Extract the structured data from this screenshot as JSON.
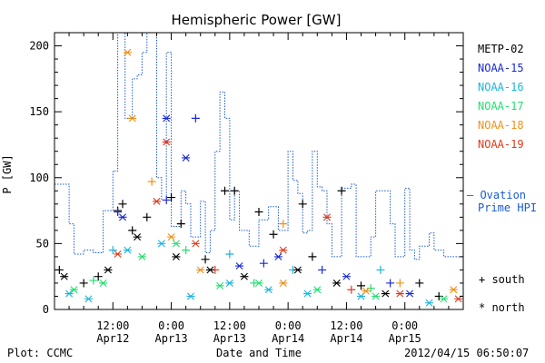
{
  "footer": {
    "plot_credit": "Plot: CCMC",
    "timestamp": "2012/04/15 06:50:07"
  },
  "chart_data": {
    "type": "scatter",
    "title": "Hemispheric Power [GW]",
    "xlabel": "Date and Time",
    "ylabel": "P [GW]",
    "ylim": [
      0,
      210
    ],
    "xlim_hours_from_first_tick_minus_12": [
      -3,
      81
    ],
    "yticks": [
      0,
      50,
      100,
      150,
      200
    ],
    "xticks": [
      {
        "time": "12:00",
        "date": "Apr12"
      },
      {
        "time": "0:00",
        "date": "Apr13"
      },
      {
        "time": "12:00",
        "date": "Apr13"
      },
      {
        "time": "0:00",
        "date": "Apr14"
      },
      {
        "time": "12:00",
        "date": "Apr14"
      },
      {
        "time": "0:00",
        "date": "Apr15"
      }
    ],
    "legend": {
      "placement": "right",
      "satellites": [
        {
          "name": "METP-02",
          "color": "#000000"
        },
        {
          "name": "NOAA-15",
          "color": "#1a2ad0"
        },
        {
          "name": "NOAA-16",
          "color": "#1ab4e0"
        },
        {
          "name": "NOAA-17",
          "color": "#22e070"
        },
        {
          "name": "NOAA-18",
          "color": "#f0901a"
        },
        {
          "name": "NOAA-19",
          "color": "#e03a1a"
        }
      ],
      "ovation_label_1": "— Ovation",
      "ovation_label_2": "Prime HPI",
      "ovation_color": "#1a5ad0",
      "marker_south": "+ south",
      "marker_north": "* north"
    },
    "ovation_step": [
      [
        -3,
        95
      ],
      [
        0,
        65
      ],
      [
        1,
        42
      ],
      [
        3,
        45
      ],
      [
        5,
        43
      ],
      [
        7,
        75
      ],
      [
        9,
        105
      ],
      [
        10,
        215
      ],
      [
        11,
        215
      ],
      [
        11.5,
        145
      ],
      [
        13,
        175
      ],
      [
        14,
        178
      ],
      [
        15,
        195
      ],
      [
        16,
        215
      ],
      [
        17,
        210
      ],
      [
        18,
        100
      ],
      [
        19,
        83
      ],
      [
        20,
        195
      ],
      [
        21,
        63
      ],
      [
        23,
        90
      ],
      [
        24,
        80
      ],
      [
        25,
        55
      ],
      [
        27,
        82
      ],
      [
        28,
        43
      ],
      [
        29,
        60
      ],
      [
        30,
        120
      ],
      [
        31,
        165
      ],
      [
        32,
        145
      ],
      [
        33,
        68
      ],
      [
        34,
        90
      ],
      [
        35,
        60
      ],
      [
        37,
        48
      ],
      [
        39,
        68
      ],
      [
        41,
        78
      ],
      [
        43,
        60
      ],
      [
        45,
        120
      ],
      [
        46,
        98
      ],
      [
        47,
        88
      ],
      [
        48,
        58
      ],
      [
        49,
        60
      ],
      [
        50,
        120
      ],
      [
        51,
        93
      ],
      [
        52,
        90
      ],
      [
        53,
        65
      ],
      [
        54,
        40
      ],
      [
        56,
        92
      ],
      [
        58,
        95
      ],
      [
        59,
        40
      ],
      [
        62,
        55
      ],
      [
        63,
        90
      ],
      [
        65,
        90
      ],
      [
        66,
        65
      ],
      [
        67,
        40
      ],
      [
        69,
        92
      ],
      [
        70,
        45
      ],
      [
        71,
        38
      ],
      [
        72,
        48
      ],
      [
        74,
        58
      ],
      [
        75,
        45
      ],
      [
        77,
        40
      ],
      [
        81,
        40
      ]
    ],
    "south_points": [
      {
        "sat": "METP-02",
        "x": -2,
        "y": 30
      },
      {
        "sat": "METP-02",
        "x": 3,
        "y": 20
      },
      {
        "sat": "METP-02",
        "x": 6,
        "y": 25
      },
      {
        "sat": "METP-02",
        "x": 10,
        "y": 75
      },
      {
        "sat": "METP-02",
        "x": 11,
        "y": 80
      },
      {
        "sat": "METP-02",
        "x": 13,
        "y": 60
      },
      {
        "sat": "METP-02",
        "x": 16,
        "y": 70
      },
      {
        "sat": "METP-02",
        "x": 21,
        "y": 85
      },
      {
        "sat": "METP-02",
        "x": 23,
        "y": 65
      },
      {
        "sat": "METP-02",
        "x": 28,
        "y": 38
      },
      {
        "sat": "METP-02",
        "x": 32,
        "y": 90
      },
      {
        "sat": "METP-02",
        "x": 34,
        "y": 90
      },
      {
        "sat": "METP-02",
        "x": 39,
        "y": 74
      },
      {
        "sat": "METP-02",
        "x": 42,
        "y": 57
      },
      {
        "sat": "METP-02",
        "x": 48,
        "y": 80
      },
      {
        "sat": "METP-02",
        "x": 50,
        "y": 40
      },
      {
        "sat": "METP-02",
        "x": 56,
        "y": 90
      },
      {
        "sat": "METP-02",
        "x": 60,
        "y": 18
      },
      {
        "sat": "METP-02",
        "x": 72,
        "y": 20
      },
      {
        "sat": "METP-02",
        "x": 76,
        "y": 10
      },
      {
        "sat": "NOAA-15",
        "x": 10,
        "y": 74
      },
      {
        "sat": "NOAA-15",
        "x": 20,
        "y": 83
      },
      {
        "sat": "NOAA-15",
        "x": 26,
        "y": 145
      },
      {
        "sat": "NOAA-15",
        "x": 40,
        "y": 35
      },
      {
        "sat": "NOAA-15",
        "x": 52,
        "y": 30
      },
      {
        "sat": "NOAA-15",
        "x": 66,
        "y": 20
      },
      {
        "sat": "NOAA-16",
        "x": 9,
        "y": 45
      },
      {
        "sat": "NOAA-16",
        "x": 33,
        "y": 42
      },
      {
        "sat": "NOAA-16",
        "x": 46,
        "y": 30
      },
      {
        "sat": "NOAA-16",
        "x": 64,
        "y": 30
      },
      {
        "sat": "NOAA-17",
        "x": 5,
        "y": 22
      },
      {
        "sat": "NOAA-17",
        "x": 24,
        "y": 45
      },
      {
        "sat": "NOAA-17",
        "x": 38,
        "y": 20
      },
      {
        "sat": "NOAA-17",
        "x": 62,
        "y": 16
      },
      {
        "sat": "NOAA-18",
        "x": 17,
        "y": 97
      },
      {
        "sat": "NOAA-18",
        "x": 44,
        "y": 65
      },
      {
        "sat": "NOAA-18",
        "x": 68,
        "y": 20
      },
      {
        "sat": "NOAA-19",
        "x": 30,
        "y": 30
      },
      {
        "sat": "NOAA-19",
        "x": 58,
        "y": 15
      }
    ],
    "north_points": [
      {
        "sat": "METP-02",
        "x": -1,
        "y": 25
      },
      {
        "sat": "METP-02",
        "x": 8,
        "y": 30
      },
      {
        "sat": "METP-02",
        "x": 14,
        "y": 55
      },
      {
        "sat": "METP-02",
        "x": 22,
        "y": 40
      },
      {
        "sat": "METP-02",
        "x": 29,
        "y": 30
      },
      {
        "sat": "METP-02",
        "x": 36,
        "y": 25
      },
      {
        "sat": "METP-02",
        "x": 47,
        "y": 30
      },
      {
        "sat": "METP-02",
        "x": 55,
        "y": 20
      },
      {
        "sat": "METP-02",
        "x": 65,
        "y": 12
      },
      {
        "sat": "NOAA-15",
        "x": 11,
        "y": 70
      },
      {
        "sat": "NOAA-15",
        "x": 20,
        "y": 145
      },
      {
        "sat": "NOAA-15",
        "x": 24,
        "y": 115
      },
      {
        "sat": "NOAA-15",
        "x": 35,
        "y": 33
      },
      {
        "sat": "NOAA-15",
        "x": 43,
        "y": 40
      },
      {
        "sat": "NOAA-15",
        "x": 57,
        "y": 25
      },
      {
        "sat": "NOAA-15",
        "x": 70,
        "y": 12
      },
      {
        "sat": "NOAA-16",
        "x": 0,
        "y": 12
      },
      {
        "sat": "NOAA-16",
        "x": 4,
        "y": 8
      },
      {
        "sat": "NOAA-16",
        "x": 12,
        "y": 45
      },
      {
        "sat": "NOAA-16",
        "x": 19,
        "y": 50
      },
      {
        "sat": "NOAA-16",
        "x": 25,
        "y": 10
      },
      {
        "sat": "NOAA-16",
        "x": 33,
        "y": 20
      },
      {
        "sat": "NOAA-16",
        "x": 41,
        "y": 15
      },
      {
        "sat": "NOAA-16",
        "x": 49,
        "y": 12
      },
      {
        "sat": "NOAA-16",
        "x": 60,
        "y": 10
      },
      {
        "sat": "NOAA-16",
        "x": 74,
        "y": 5
      },
      {
        "sat": "NOAA-17",
        "x": 1,
        "y": 15
      },
      {
        "sat": "NOAA-17",
        "x": 7,
        "y": 20
      },
      {
        "sat": "NOAA-17",
        "x": 15,
        "y": 40
      },
      {
        "sat": "NOAA-17",
        "x": 22,
        "y": 50
      },
      {
        "sat": "NOAA-17",
        "x": 31,
        "y": 18
      },
      {
        "sat": "NOAA-17",
        "x": 39,
        "y": 20
      },
      {
        "sat": "NOAA-17",
        "x": 51,
        "y": 15
      },
      {
        "sat": "NOAA-17",
        "x": 63,
        "y": 10
      },
      {
        "sat": "NOAA-17",
        "x": 77,
        "y": 8
      },
      {
        "sat": "NOAA-18",
        "x": 12,
        "y": 195
      },
      {
        "sat": "NOAA-18",
        "x": 13,
        "y": 145
      },
      {
        "sat": "NOAA-18",
        "x": 21,
        "y": 55
      },
      {
        "sat": "NOAA-18",
        "x": 27,
        "y": 30
      },
      {
        "sat": "NOAA-18",
        "x": 44,
        "y": 20
      },
      {
        "sat": "NOAA-18",
        "x": 61,
        "y": 14
      },
      {
        "sat": "NOAA-18",
        "x": 79,
        "y": 15
      },
      {
        "sat": "NOAA-19",
        "x": 10,
        "y": 42
      },
      {
        "sat": "NOAA-19",
        "x": 18,
        "y": 82
      },
      {
        "sat": "NOAA-19",
        "x": 20,
        "y": 127
      },
      {
        "sat": "NOAA-19",
        "x": 26,
        "y": 50
      },
      {
        "sat": "NOAA-19",
        "x": 44,
        "y": 45
      },
      {
        "sat": "NOAA-19",
        "x": 53,
        "y": 70
      },
      {
        "sat": "NOAA-19",
        "x": 68,
        "y": 12
      },
      {
        "sat": "NOAA-19",
        "x": 80,
        "y": 8
      }
    ]
  }
}
